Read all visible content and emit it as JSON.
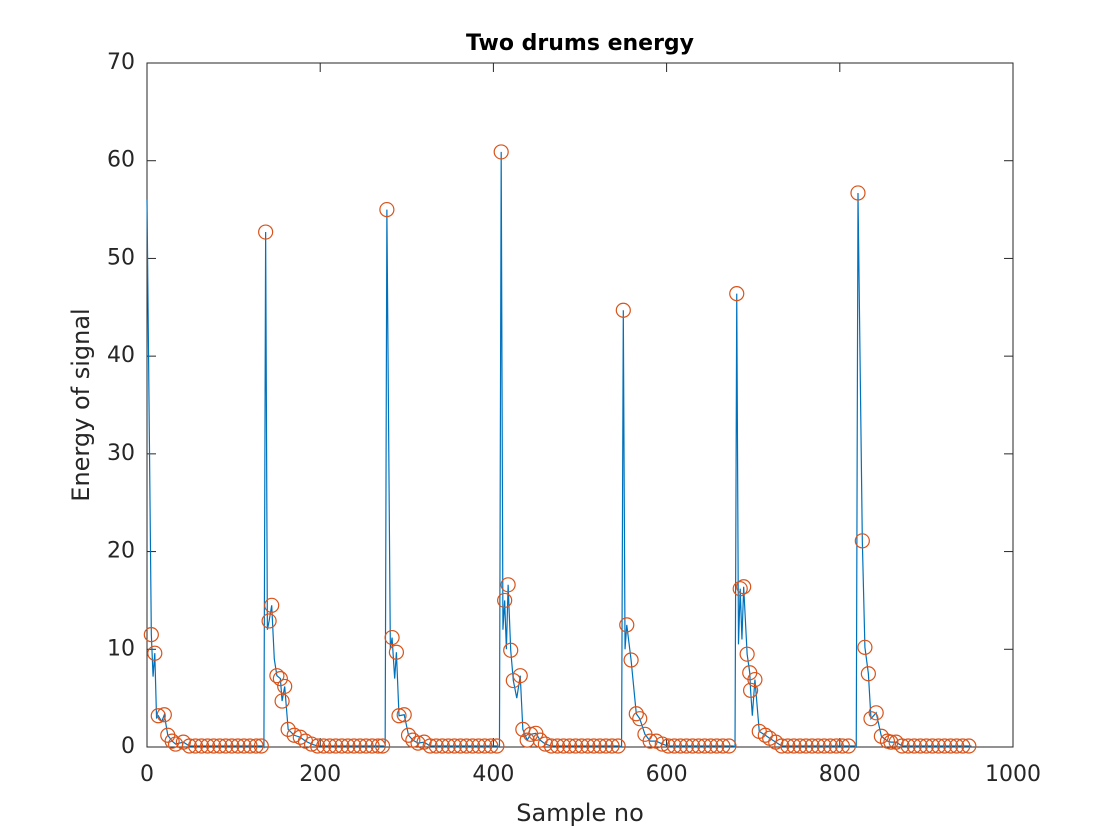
{
  "chart_data": {
    "type": "line",
    "title": "Two drums energy",
    "xlabel": "Sample no",
    "ylabel": "Energy of signal",
    "xlim": [
      0,
      1000
    ],
    "xticks": [
      0,
      200,
      400,
      600,
      800,
      1000
    ],
    "ylim": [
      0,
      70
    ],
    "yticks": [
      0,
      10,
      20,
      30,
      40,
      50,
      60,
      70
    ],
    "grid": false,
    "series": [
      {
        "color": "#0072BD",
        "marker": "none",
        "x": [
          0,
          5,
          7,
          9,
          11,
          13,
          17,
          20,
          24,
          29,
          33,
          42,
          49,
          134,
          135,
          137,
          139,
          141,
          144,
          147,
          150,
          154,
          156,
          159,
          163,
          170,
          177,
          183,
          190,
          197,
          273,
          275,
          277,
          281,
          283,
          286,
          288,
          291,
          297,
          302,
          307,
          313,
          320,
          327,
          405,
          407,
          409,
          411,
          413,
          415,
          417,
          420,
          423,
          427,
          431,
          434,
          439,
          443,
          449,
          454,
          460,
          467,
          546,
          548,
          550,
          552,
          554,
          559,
          565,
          569,
          575,
          581,
          588,
          595,
          602,
          677,
          679,
          681,
          683,
          685,
          687,
          689,
          693,
          696,
          697,
          699,
          702,
          707,
          714,
          719,
          726,
          733,
          817,
          819,
          821,
          826,
          829,
          833,
          836,
          842,
          848,
          855,
          859,
          865,
          872,
          952
        ],
        "values": [
          56,
          11.5,
          7.2,
          9.6,
          3.0,
          3.2,
          2.6,
          3.3,
          1.2,
          0.6,
          0.3,
          0.5,
          0.1,
          0.1,
          0,
          52.7,
          12,
          12.9,
          14.5,
          9,
          7.3,
          7.0,
          4.7,
          6.2,
          1.8,
          1.2,
          1.0,
          0.6,
          0.3,
          0.1,
          0.1,
          0,
          55,
          10,
          11.2,
          7,
          9.7,
          3.2,
          3.3,
          1.2,
          0.7,
          0.4,
          0.5,
          0.1,
          0.1,
          0,
          60.9,
          12,
          15,
          10,
          16.6,
          9.9,
          6.8,
          5,
          7.3,
          1.8,
          0.7,
          1.3,
          1.4,
          0.7,
          0.3,
          0.1,
          0.1,
          0,
          44.7,
          10,
          12.5,
          8.9,
          3.4,
          2.9,
          1.3,
          0.6,
          0.6,
          0.3,
          0.1,
          0.1,
          0,
          46.4,
          10.5,
          16.2,
          11,
          16.4,
          9.5,
          7.6,
          5.8,
          3.2,
          6.9,
          1.6,
          1.2,
          0.9,
          0.5,
          0.1,
          0.1,
          0,
          56.7,
          21.1,
          10.2,
          7.5,
          2.9,
          3.5,
          1.1,
          0.6,
          0.5,
          0.5,
          0.1,
          0.1
        ]
      },
      {
        "color": "#D95319",
        "marker": "circle",
        "x": [
          5,
          9,
          13,
          20,
          24,
          29,
          33,
          42,
          49,
          56,
          63,
          70,
          77,
          84,
          91,
          98,
          105,
          112,
          119,
          126,
          132,
          137,
          141,
          144,
          150,
          154,
          156,
          159,
          163,
          170,
          177,
          183,
          190,
          197,
          204,
          211,
          218,
          225,
          232,
          239,
          246,
          253,
          260,
          267,
          272,
          277,
          283,
          288,
          291,
          297,
          302,
          307,
          313,
          320,
          327,
          334,
          341,
          348,
          355,
          362,
          369,
          376,
          383,
          390,
          397,
          404,
          409,
          413,
          417,
          420,
          423,
          431,
          434,
          439,
          443,
          449,
          454,
          460,
          467,
          474,
          481,
          488,
          495,
          502,
          509,
          516,
          523,
          530,
          537,
          544,
          550,
          554,
          559,
          565,
          569,
          575,
          581,
          588,
          595,
          602,
          609,
          616,
          623,
          630,
          637,
          644,
          651,
          658,
          665,
          672,
          681,
          685,
          689,
          693,
          696,
          697,
          702,
          707,
          714,
          719,
          726,
          733,
          740,
          747,
          754,
          761,
          768,
          775,
          782,
          789,
          796,
          803,
          810,
          821,
          826,
          829,
          833,
          836,
          842,
          848,
          855,
          859,
          865,
          872,
          879,
          886,
          893,
          900,
          907,
          914,
          921,
          928,
          935,
          942,
          949
        ],
        "values": [
          11.5,
          9.6,
          3.2,
          3.3,
          1.2,
          0.6,
          0.3,
          0.5,
          0.1,
          0.1,
          0.1,
          0.1,
          0.1,
          0.1,
          0.1,
          0.1,
          0.1,
          0.1,
          0.1,
          0.1,
          0.1,
          52.7,
          12.9,
          14.5,
          7.3,
          7.0,
          4.7,
          6.2,
          1.8,
          1.2,
          1.0,
          0.6,
          0.3,
          0.1,
          0.1,
          0.1,
          0.1,
          0.1,
          0.1,
          0.1,
          0.1,
          0.1,
          0.1,
          0.1,
          0.1,
          55,
          11.2,
          9.7,
          3.2,
          3.3,
          1.2,
          0.7,
          0.4,
          0.5,
          0.1,
          0.1,
          0.1,
          0.1,
          0.1,
          0.1,
          0.1,
          0.1,
          0.1,
          0.1,
          0.1,
          0.1,
          60.9,
          15,
          16.6,
          9.9,
          6.8,
          7.3,
          1.8,
          0.7,
          1.3,
          1.4,
          0.7,
          0.3,
          0.1,
          0.1,
          0.1,
          0.1,
          0.1,
          0.1,
          0.1,
          0.1,
          0.1,
          0.1,
          0.1,
          0.1,
          44.7,
          12.5,
          8.9,
          3.4,
          2.9,
          1.3,
          0.6,
          0.6,
          0.3,
          0.1,
          0.1,
          0.1,
          0.1,
          0.1,
          0.1,
          0.1,
          0.1,
          0.1,
          0.1,
          0.1,
          46.4,
          16.2,
          16.4,
          9.5,
          7.6,
          5.8,
          6.9,
          1.6,
          1.2,
          0.9,
          0.5,
          0.1,
          0.1,
          0.1,
          0.1,
          0.1,
          0.1,
          0.1,
          0.1,
          0.1,
          0.1,
          0.1,
          0.1,
          56.7,
          21.1,
          10.2,
          7.5,
          2.9,
          3.5,
          1.1,
          0.6,
          0.5,
          0.5,
          0.1,
          0.1,
          0.1,
          0.1,
          0.1,
          0.1,
          0.1,
          0.1,
          0.1,
          0.1,
          0.1,
          0.1
        ]
      }
    ]
  }
}
